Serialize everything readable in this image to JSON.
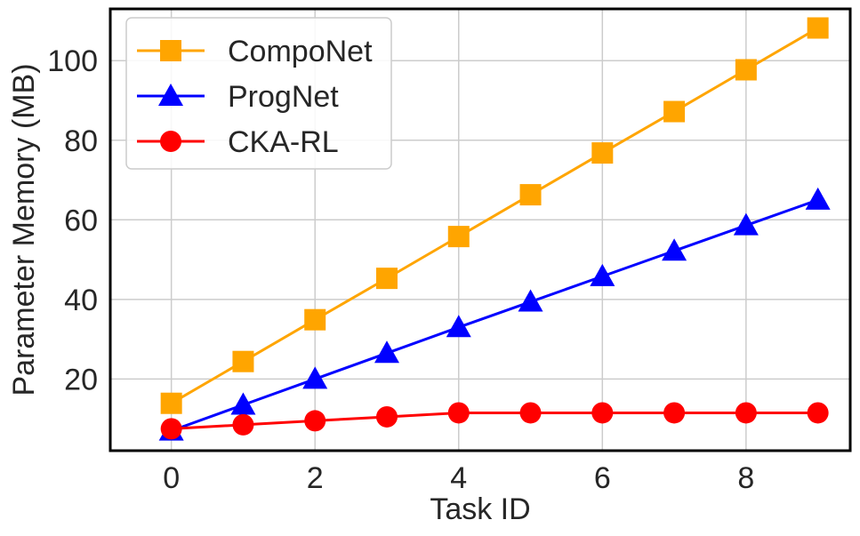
{
  "chart_data": {
    "type": "line",
    "title": "",
    "xlabel": "Task ID",
    "ylabel": "Parameter Memory (MB)",
    "x": [
      0,
      1,
      2,
      3,
      4,
      5,
      6,
      7,
      8,
      9
    ],
    "xlim": [
      -0.85,
      9.45
    ],
    "ylim": [
      2,
      113
    ],
    "xticks": [
      0,
      2,
      4,
      6,
      8
    ],
    "yticks": [
      20,
      40,
      60,
      80,
      100
    ],
    "xtick_labels": [
      "0",
      "2",
      "4",
      "6",
      "8"
    ],
    "ytick_labels": [
      "20",
      "40",
      "60",
      "80",
      "100"
    ],
    "grid": true,
    "legend_position": "top-left",
    "series": [
      {
        "name": "CompoNet",
        "color": "#FFA500",
        "marker": "square",
        "values": [
          13.9,
          24.4,
          34.9,
          45.3,
          55.8,
          66.3,
          76.8,
          87.2,
          97.7,
          108.2
        ]
      },
      {
        "name": "ProgNet",
        "color": "#0000FF",
        "marker": "triangle",
        "values": [
          7.0,
          13.5,
          20.0,
          26.5,
          33.0,
          39.4,
          45.8,
          52.2,
          58.6,
          65.0
        ]
      },
      {
        "name": "CKA-RL",
        "color": "#FF0000",
        "marker": "circle",
        "values": [
          7.5,
          8.5,
          9.5,
          10.5,
          11.5,
          11.5,
          11.5,
          11.5,
          11.5,
          11.5
        ]
      }
    ]
  }
}
